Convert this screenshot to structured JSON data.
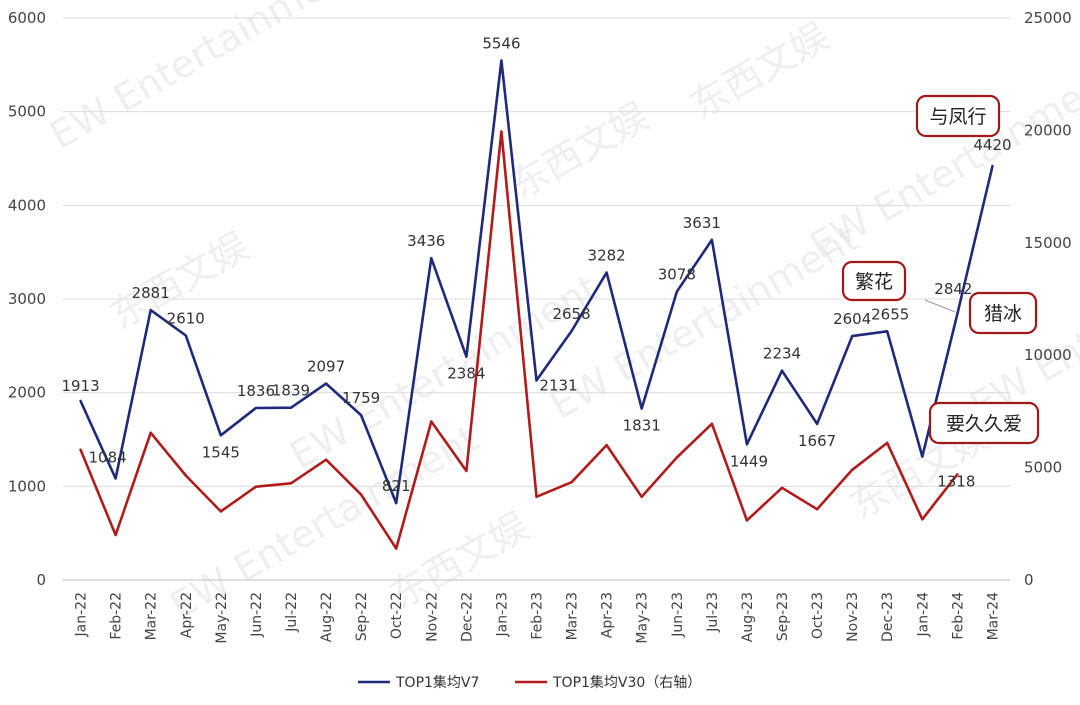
{
  "chart_data": {
    "type": "line",
    "categories": [
      "Jan-22",
      "Feb-22",
      "Mar-22",
      "Apr-22",
      "May-22",
      "Jun-22",
      "Jul-22",
      "Aug-22",
      "Sep-22",
      "Oct-22",
      "Nov-22",
      "Dec-22",
      "Jan-23",
      "Feb-23",
      "Mar-23",
      "Apr-23",
      "May-23",
      "Jun-23",
      "Jul-23",
      "Aug-23",
      "Sep-23",
      "Oct-23",
      "Nov-23",
      "Dec-23",
      "Jan-24",
      "Feb-24",
      "Mar-24"
    ],
    "series": [
      {
        "name": "TOP1集均V7",
        "axis": "left",
        "color": "#1f2a7a",
        "values": [
          1913,
          1084,
          2881,
          2610,
          1545,
          1836,
          1839,
          2097,
          1759,
          821,
          3436,
          2384,
          5546,
          2131,
          2658,
          3282,
          1831,
          3078,
          3631,
          1449,
          2234,
          1667,
          2604,
          2655,
          1318,
          2842,
          4420
        ],
        "labels": [
          "1913",
          "1084",
          "2881",
          "2610",
          "1545",
          "1836",
          "1839",
          "2097",
          "1759",
          "821",
          "3436",
          "2384",
          "5546",
          "2131",
          "2658",
          "3282",
          "1831",
          "3078",
          "3631",
          "1449",
          "2234",
          "1667",
          "2604",
          "2655",
          "1318",
          "2842",
          "4420"
        ]
      },
      {
        "name": "TOP1集均V30（右轴）",
        "axis": "right",
        "color": "#b01c1c",
        "values": [
          5800,
          2000,
          6550,
          4650,
          3050,
          4150,
          4300,
          5350,
          3800,
          1400,
          7050,
          4850,
          19950,
          3700,
          4350,
          6000,
          3700,
          5450,
          6950,
          2650,
          4100,
          3150,
          4900,
          6100,
          2700,
          4700,
          null
        ]
      }
    ],
    "y_left": {
      "min": 0,
      "max": 6000,
      "ticks": [
        "0",
        "1000",
        "2000",
        "3000",
        "4000",
        "5000",
        "6000"
      ]
    },
    "y_right": {
      "min": 0,
      "max": 25000,
      "ticks": [
        "0",
        "5000",
        "10000",
        "15000",
        "20000",
        "25000"
      ]
    },
    "grid": true,
    "legend_position": "bottom",
    "annotations": [
      "与凤行",
      "繁花",
      "猎冰",
      "要久久爱"
    ],
    "watermark": [
      "EW Entertainment",
      "东西文娱"
    ]
  }
}
